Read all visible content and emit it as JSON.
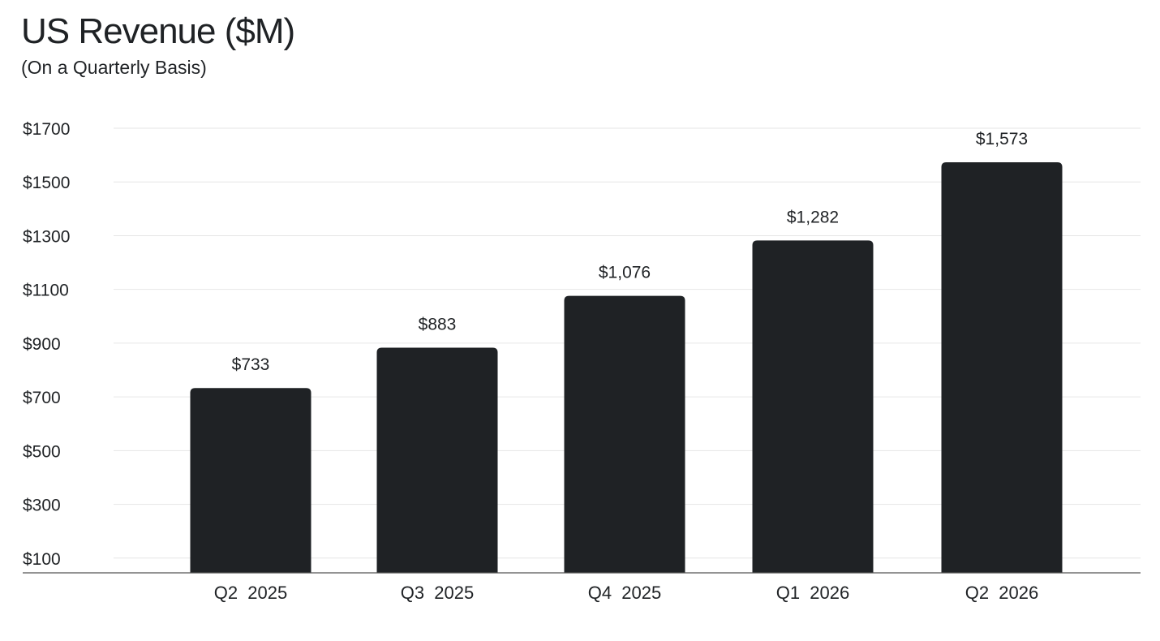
{
  "chart_data": {
    "type": "bar",
    "title": "US Revenue ($M)",
    "subtitle": "(On a Quarterly Basis)",
    "categories": [
      "Q2  2025",
      "Q3  2025",
      "Q4  2025",
      "Q1  2026",
      "Q2  2026"
    ],
    "values": [
      733,
      883,
      1076,
      1282,
      1573
    ],
    "value_labels": [
      "$733",
      "$883",
      "$1,076",
      "$1,282",
      "$1,573"
    ],
    "xlabel": "",
    "ylabel": "",
    "ylim": [
      45,
      1700
    ],
    "yticks": [
      100,
      300,
      500,
      700,
      900,
      1100,
      1300,
      1500,
      1700
    ],
    "ytick_labels": [
      "$100",
      "$300",
      "$500",
      "$700",
      "$900",
      "$1100",
      "$1300",
      "$1500",
      "$1700"
    ],
    "grid": true,
    "legend": "none",
    "colors": {
      "bar": "#1f2225",
      "grid": "#e6e6e6",
      "axis": "#555555",
      "text": "#1f2225"
    }
  }
}
